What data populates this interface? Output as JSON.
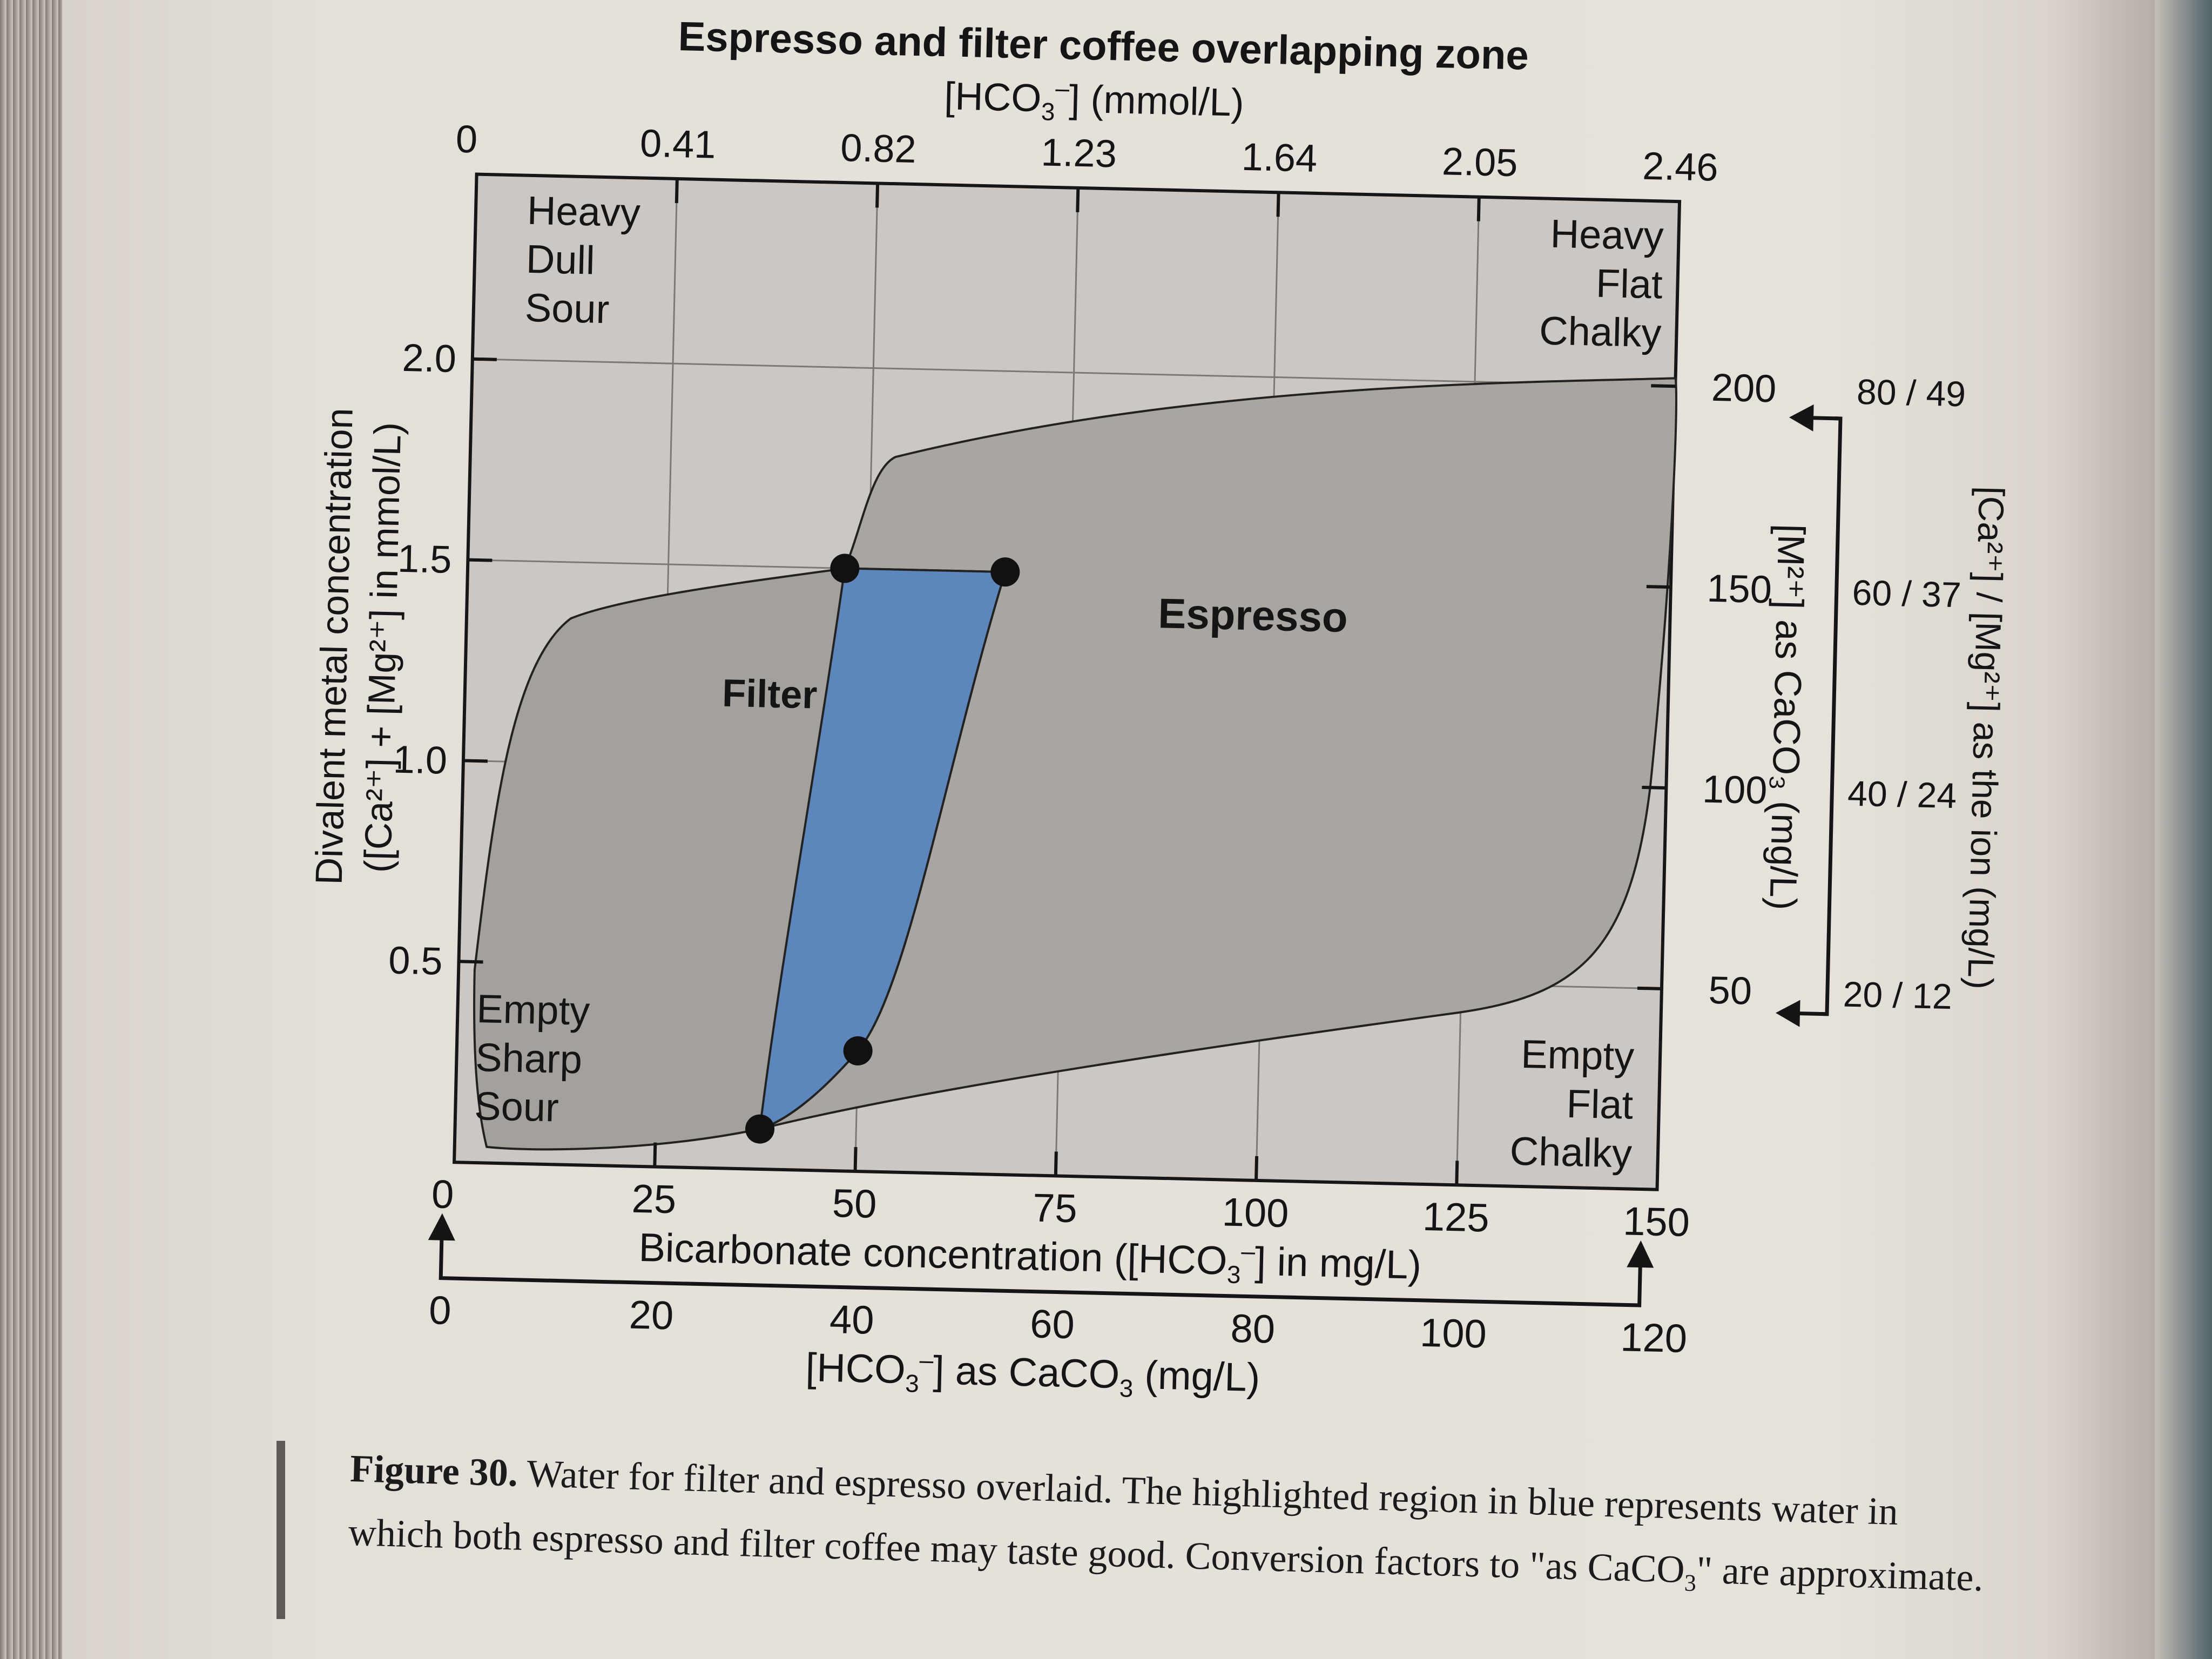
{
  "chart_data": {
    "type": "area",
    "title": "Espresso and filter coffee overlapping zone",
    "top_axis": {
      "label_main": "[HCO",
      "label_sub": "3",
      "label_sup": "–",
      "label_rest": "] (mmol/L)",
      "ticks": [
        "0",
        "0.41",
        "0.82",
        "1.23",
        "1.64",
        "2.05",
        "2.46"
      ],
      "values": [
        0,
        0.41,
        0.82,
        1.23,
        1.64,
        2.05,
        2.46
      ]
    },
    "x_axis": {
      "label_a": "Bicarbonate concentration ([HCO",
      "label_sub": "3",
      "label_sup": "–",
      "label_b": "] in mg/L)",
      "ticks": [
        "0",
        "25",
        "50",
        "75",
        "100",
        "125",
        "150"
      ],
      "values": [
        0,
        25,
        50,
        75,
        100,
        125,
        150
      ],
      "xlim": [
        0,
        150
      ]
    },
    "x2_axis": {
      "label_a": "[HCO",
      "label_sub": "3",
      "label_sup": "–",
      "label_b": "]  as CaCO",
      "label_sub2": "3",
      "label_c": " (mg/L)",
      "ticks": [
        "0",
        "20",
        "40",
        "60",
        "80",
        "100",
        "120"
      ],
      "values": [
        0,
        20,
        40,
        60,
        80,
        100,
        120
      ]
    },
    "y_axis": {
      "label_line1": "Divalent metal concentration",
      "label_line2": "([Ca²⁺] + [Mg²⁺] in mmol/L)",
      "ticks": [
        "0.5",
        "1.0",
        "1.5",
        "2.0"
      ],
      "values": [
        0.5,
        1.0,
        1.5,
        2.0
      ],
      "ylim": [
        0,
        2.46
      ]
    },
    "y2_axis": {
      "label": "[M²⁺] as CaCO₃ (mg/L)",
      "ticks": [
        "50",
        "100",
        "150",
        "200"
      ],
      "values": [
        50,
        100,
        150,
        200
      ]
    },
    "y3_axis": {
      "label": "[Ca²⁺] / [Mg²⁺] as the ion (mg/L)",
      "ticks": [
        "20 / 12",
        "40 / 24",
        "60 / 37",
        "80 / 49"
      ],
      "values": [
        0.5,
        1.0,
        1.5,
        2.0
      ]
    },
    "regions": [
      {
        "name": "Filter",
        "label": "Filter",
        "color": "#a4a09c",
        "anchor": [
          38,
          1.15
        ]
      },
      {
        "name": "Espresso",
        "label": "Espresso",
        "color": "#a9a5a1",
        "anchor": [
          98,
          1.37
        ]
      },
      {
        "name": "Overlap",
        "label": "",
        "color": "#5d87bc"
      }
    ],
    "overlap_points": [
      {
        "x": 47,
        "y": 1.5
      },
      {
        "x": 67,
        "y": 1.5
      },
      {
        "x": 50,
        "y": 0.3
      },
      {
        "x": 38,
        "y": 0.1
      }
    ],
    "corner_labels": {
      "top_left": [
        "Heavy",
        "Dull",
        "Sour"
      ],
      "top_right": [
        "Heavy",
        "Flat",
        "Chalky"
      ],
      "bottom_left": [
        "Empty",
        "Sharp",
        "Sour"
      ],
      "bottom_right": [
        "Empty",
        "Flat",
        "Chalky"
      ]
    }
  },
  "caption": {
    "figure": "Figure 30.",
    "text": " Water for filter and espresso overlaid. The highlighted region in blue represents water in which both espresso and filter coffee may taste good. Conversion factors to \"as CaCO",
    "sub": "3",
    "end": "\" are approximate."
  },
  "colors": {
    "filter": "#a4a09c",
    "espresso": "#a9a5a1",
    "overlap": "#5d87bc",
    "plot_bg": "#ccc7c2",
    "grid": "#7c7874"
  }
}
